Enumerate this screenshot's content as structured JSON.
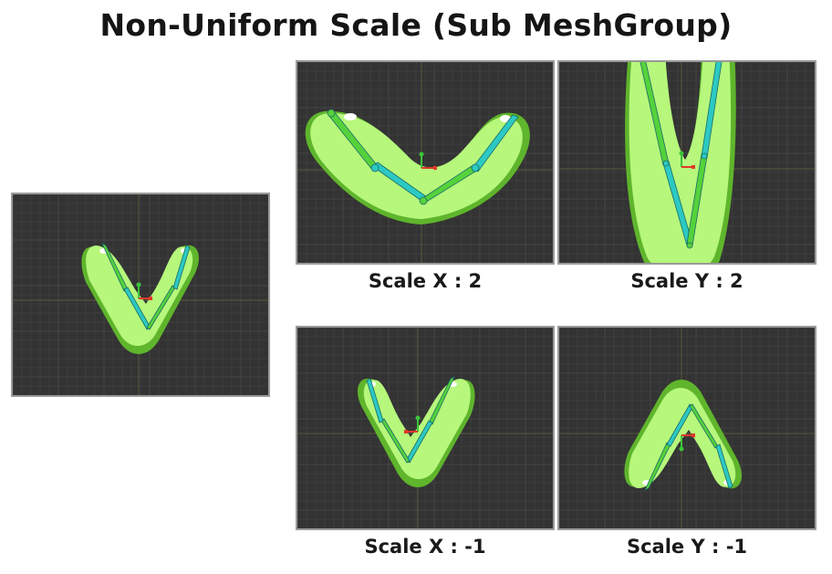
{
  "title": "Non-Uniform Scale (Sub MeshGroup)",
  "captions": {
    "scale_x_2": "Scale X : 2",
    "scale_y_2": "Scale Y : 2",
    "scale_x_neg1": "Scale X : -1",
    "scale_y_neg1": "Scale Y : -1"
  },
  "colors": {
    "viewport_bg": "#333333",
    "grid_minor": "#3d3d3d",
    "grid_major": "#444444",
    "axis": "#5b5a3c",
    "mesh_fill": "#b6f77c",
    "mesh_outline": "#5fb52c",
    "bone": "#2cc9c3",
    "bone_stroke": "#1a6b66",
    "bone_green": "#55d23b",
    "gizmo_x": "#e0382a",
    "gizmo_y": "#3cc43a"
  }
}
